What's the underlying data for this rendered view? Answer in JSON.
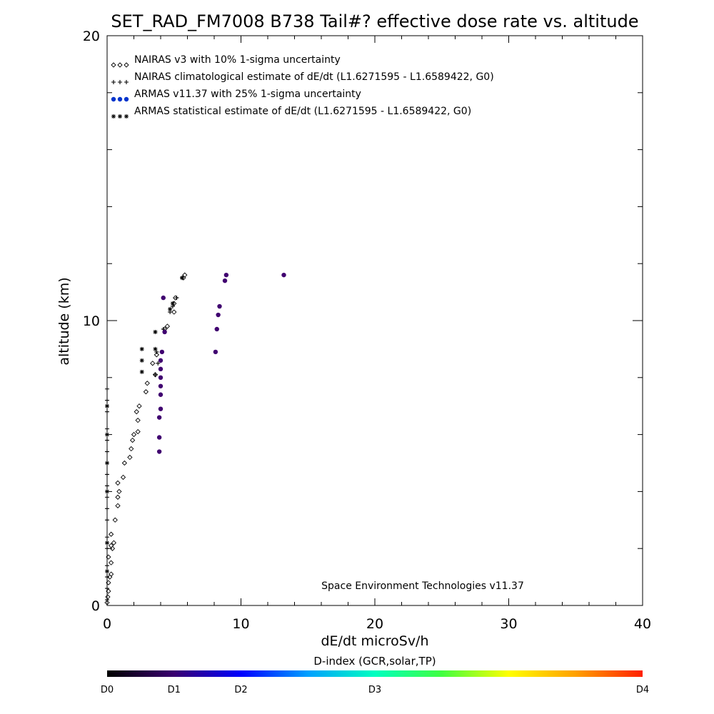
{
  "chart_data": {
    "type": "scatter",
    "title": "SET_RAD_FM7008  B738 Tail#? effective dose rate vs. altitude",
    "xlabel": "dE/dt microSv/h",
    "ylabel": "altitude (km)",
    "xlim": [
      0,
      40
    ],
    "ylim": [
      0,
      20
    ],
    "x_ticks": [
      "0",
      "10",
      "20",
      "30",
      "40"
    ],
    "y_ticks": [
      "0",
      "10",
      "20"
    ],
    "legend_position": "top-left",
    "credit": "Space Environment Technologies v11.37",
    "series": [
      {
        "name": "NAIRAS v3 with 10% 1-sigma uncertainty",
        "marker": "diamond",
        "color": "#000000",
        "points": [
          [
            0.0,
            0.1
          ],
          [
            0.05,
            0.3
          ],
          [
            0.1,
            0.5
          ],
          [
            0.1,
            0.8
          ],
          [
            0.2,
            1.0
          ],
          [
            0.3,
            1.1
          ],
          [
            0.3,
            1.5
          ],
          [
            0.1,
            1.7
          ],
          [
            0.4,
            2.0
          ],
          [
            0.3,
            2.1
          ],
          [
            0.5,
            2.2
          ],
          [
            0.3,
            2.5
          ],
          [
            0.6,
            3.0
          ],
          [
            0.8,
            3.5
          ],
          [
            0.8,
            3.8
          ],
          [
            0.9,
            4.0
          ],
          [
            0.8,
            4.3
          ],
          [
            1.2,
            4.5
          ],
          [
            1.3,
            5.0
          ],
          [
            1.7,
            5.2
          ],
          [
            1.8,
            5.5
          ],
          [
            1.9,
            5.8
          ],
          [
            2.0,
            6.0
          ],
          [
            2.3,
            6.1
          ],
          [
            2.3,
            6.5
          ],
          [
            2.2,
            6.8
          ],
          [
            2.4,
            7.0
          ],
          [
            2.9,
            7.5
          ],
          [
            3.0,
            7.8
          ],
          [
            3.6,
            8.1
          ],
          [
            3.4,
            8.5
          ],
          [
            3.7,
            8.8
          ],
          [
            4.3,
            9.7
          ],
          [
            4.5,
            9.8
          ],
          [
            5.0,
            10.3
          ],
          [
            5.0,
            10.6
          ],
          [
            5.1,
            10.8
          ],
          [
            5.7,
            11.5
          ],
          [
            5.8,
            11.6
          ]
        ]
      },
      {
        "name": "NAIRAS climatological estimate of dE/dt (L1.6271595 - L1.6589422, G0)",
        "marker": "plus",
        "color": "#000000",
        "points": [
          [
            0.0,
            0.2
          ],
          [
            0.0,
            0.6
          ],
          [
            0.0,
            1.0
          ],
          [
            0.0,
            1.4
          ],
          [
            0.0,
            2.0
          ],
          [
            0.0,
            2.4
          ],
          [
            0.0,
            3.0
          ],
          [
            0.0,
            3.4
          ],
          [
            0.0,
            3.8
          ],
          [
            0.0,
            4.2
          ],
          [
            0.0,
            4.6
          ],
          [
            0.0,
            5.0
          ],
          [
            0.0,
            5.4
          ],
          [
            0.0,
            5.8
          ],
          [
            0.0,
            6.2
          ],
          [
            0.0,
            6.8
          ],
          [
            0.0,
            7.2
          ],
          [
            0.0,
            7.6
          ],
          [
            3.6,
            8.1
          ],
          [
            3.8,
            8.5
          ],
          [
            3.7,
            8.9
          ],
          [
            3.6,
            9.6
          ],
          [
            4.2,
            9.7
          ],
          [
            4.7,
            10.3
          ],
          [
            4.9,
            10.5
          ],
          [
            5.2,
            10.8
          ],
          [
            5.6,
            11.5
          ]
        ]
      },
      {
        "name": "ARMAS v11.37 with 25% 1-sigma uncertainty",
        "marker": "filled-circle",
        "color": "#0033cc",
        "points": [
          [
            3.9,
            5.4
          ],
          [
            3.9,
            5.9
          ],
          [
            3.9,
            6.6
          ],
          [
            4.0,
            6.9
          ],
          [
            4.0,
            7.4
          ],
          [
            4.0,
            7.7
          ],
          [
            4.0,
            8.0
          ],
          [
            4.0,
            8.3
          ],
          [
            4.0,
            8.6
          ],
          [
            4.1,
            8.9
          ],
          [
            4.3,
            9.6
          ],
          [
            4.2,
            10.8
          ],
          [
            8.1,
            8.9
          ],
          [
            8.2,
            9.7
          ],
          [
            8.3,
            10.2
          ],
          [
            8.4,
            10.5
          ],
          [
            8.8,
            11.4
          ],
          [
            8.9,
            11.6
          ],
          [
            13.2,
            11.6
          ]
        ]
      },
      {
        "name": "ARMAS statistical estimate of dE/dt (L1.6271595 - L1.6589422, G0)",
        "marker": "asterisk",
        "color": "#000000",
        "points": [
          [
            0.0,
            1.2
          ],
          [
            0.0,
            2.2
          ],
          [
            0.0,
            4.0
          ],
          [
            0.0,
            5.0
          ],
          [
            0.0,
            6.0
          ],
          [
            0.0,
            7.0
          ],
          [
            2.6,
            8.2
          ],
          [
            2.6,
            8.6
          ],
          [
            2.6,
            9.0
          ],
          [
            3.6,
            9.0
          ],
          [
            3.6,
            9.6
          ],
          [
            4.7,
            10.4
          ],
          [
            4.9,
            10.6
          ],
          [
            5.6,
            11.5
          ]
        ]
      }
    ],
    "colorbar": {
      "title": "D-index (GCR,solar,TP)",
      "tick_labels": [
        "D0",
        "D1",
        "D2",
        "D3",
        "D4"
      ],
      "tick_positions": [
        0,
        0.125,
        0.25,
        0.5,
        1.0
      ],
      "colors": [
        "#000000",
        "#3a0070",
        "#0000ff",
        "#00a0ff",
        "#00ffc0",
        "#40ff40",
        "#ffff00",
        "#ffa000",
        "#ff2000"
      ]
    }
  }
}
